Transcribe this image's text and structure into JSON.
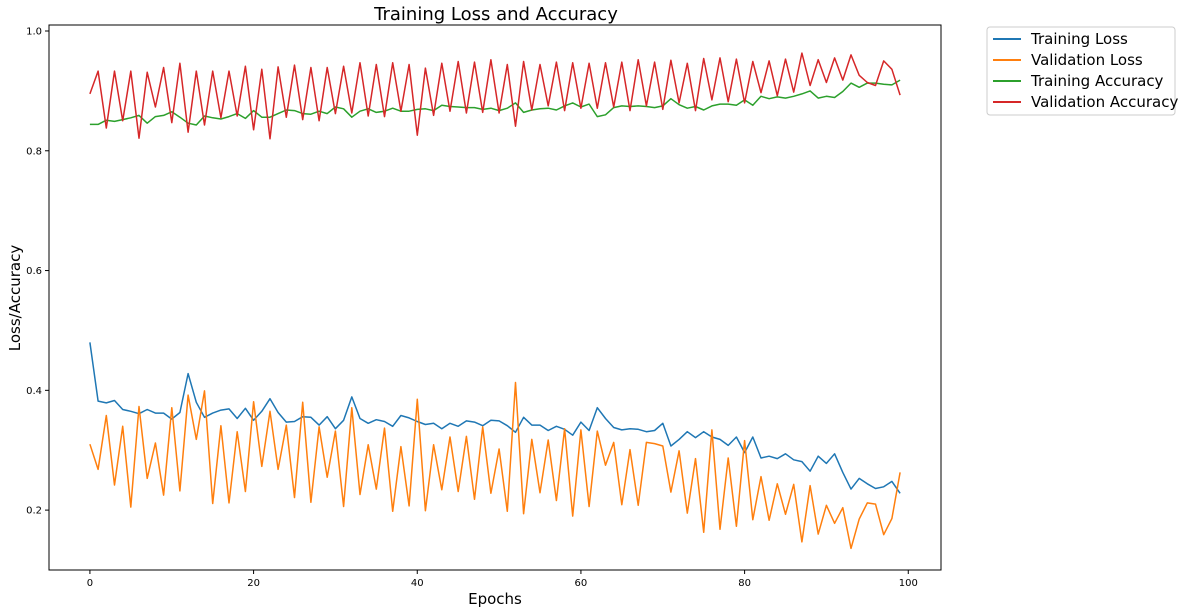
{
  "chart_data": {
    "type": "line",
    "title": "Training Loss and Accuracy",
    "xlabel": "Epochs",
    "ylabel": "Loss/Accuracy",
    "xlim": [
      -5,
      104
    ],
    "ylim": [
      0.1,
      1.01
    ],
    "xticks": [
      "0",
      "20",
      "40",
      "60",
      "80",
      "100"
    ],
    "yticks": [
      "0.2",
      "0.4",
      "0.6",
      "0.8",
      "1.0"
    ],
    "grid": false,
    "legend_position": "outside-top-right",
    "x": [
      0,
      1,
      2,
      3,
      4,
      5,
      6,
      7,
      8,
      9,
      10,
      11,
      12,
      13,
      14,
      15,
      16,
      17,
      18,
      19,
      20,
      21,
      22,
      23,
      24,
      25,
      26,
      27,
      28,
      29,
      30,
      31,
      32,
      33,
      34,
      35,
      36,
      37,
      38,
      39,
      40,
      41,
      42,
      43,
      44,
      45,
      46,
      47,
      48,
      49,
      50,
      51,
      52,
      53,
      54,
      55,
      56,
      57,
      58,
      59,
      60,
      61,
      62,
      63,
      64,
      65,
      66,
      67,
      68,
      69,
      70,
      71,
      72,
      73,
      74,
      75,
      76,
      77,
      78,
      79,
      80,
      81,
      82,
      83,
      84,
      85,
      86,
      87,
      88,
      89,
      90,
      91,
      92,
      93,
      94,
      95,
      96,
      97,
      98,
      99
    ],
    "series": [
      {
        "name": "Training Loss",
        "color": "#1f77b4",
        "values": [
          0.48,
          0.382,
          0.379,
          0.383,
          0.368,
          0.365,
          0.361,
          0.368,
          0.362,
          0.362,
          0.352,
          0.363,
          0.428,
          0.38,
          0.355,
          0.362,
          0.367,
          0.369,
          0.353,
          0.37,
          0.35,
          0.365,
          0.386,
          0.363,
          0.347,
          0.348,
          0.356,
          0.355,
          0.342,
          0.356,
          0.336,
          0.35,
          0.389,
          0.353,
          0.345,
          0.351,
          0.348,
          0.34,
          0.358,
          0.354,
          0.348,
          0.343,
          0.345,
          0.336,
          0.345,
          0.34,
          0.349,
          0.347,
          0.341,
          0.35,
          0.349,
          0.341,
          0.33,
          0.355,
          0.342,
          0.342,
          0.333,
          0.34,
          0.335,
          0.325,
          0.347,
          0.333,
          0.371,
          0.353,
          0.338,
          0.334,
          0.336,
          0.335,
          0.331,
          0.333,
          0.345,
          0.307,
          0.318,
          0.331,
          0.321,
          0.331,
          0.322,
          0.318,
          0.308,
          0.322,
          0.296,
          0.322,
          0.287,
          0.29,
          0.286,
          0.294,
          0.284,
          0.281,
          0.265,
          0.29,
          0.278,
          0.294,
          0.263,
          0.235,
          0.253,
          0.244,
          0.236,
          0.239,
          0.248,
          0.228
        ]
      },
      {
        "name": "Validation Loss",
        "color": "#ff7f0e",
        "values": [
          0.31,
          0.268,
          0.358,
          0.242,
          0.34,
          0.205,
          0.373,
          0.253,
          0.312,
          0.225,
          0.371,
          0.232,
          0.392,
          0.318,
          0.399,
          0.211,
          0.341,
          0.212,
          0.331,
          0.231,
          0.381,
          0.273,
          0.365,
          0.268,
          0.342,
          0.221,
          0.38,
          0.213,
          0.339,
          0.255,
          0.332,
          0.206,
          0.371,
          0.226,
          0.309,
          0.235,
          0.337,
          0.198,
          0.306,
          0.207,
          0.385,
          0.199,
          0.309,
          0.234,
          0.322,
          0.231,
          0.323,
          0.218,
          0.339,
          0.228,
          0.302,
          0.198,
          0.413,
          0.194,
          0.318,
          0.229,
          0.317,
          0.216,
          0.336,
          0.19,
          0.334,
          0.206,
          0.332,
          0.275,
          0.313,
          0.209,
          0.301,
          0.208,
          0.313,
          0.311,
          0.307,
          0.23,
          0.299,
          0.195,
          0.286,
          0.163,
          0.334,
          0.168,
          0.287,
          0.173,
          0.316,
          0.184,
          0.256,
          0.183,
          0.244,
          0.193,
          0.243,
          0.147,
          0.241,
          0.16,
          0.208,
          0.178,
          0.204,
          0.136,
          0.185,
          0.212,
          0.21,
          0.159,
          0.186,
          0.263
        ]
      },
      {
        "name": "Training Accuracy",
        "color": "#2ca02c",
        "values": [
          0.844,
          0.844,
          0.851,
          0.849,
          0.852,
          0.855,
          0.859,
          0.846,
          0.857,
          0.859,
          0.865,
          0.856,
          0.846,
          0.843,
          0.858,
          0.855,
          0.853,
          0.857,
          0.862,
          0.854,
          0.867,
          0.856,
          0.856,
          0.862,
          0.868,
          0.867,
          0.862,
          0.861,
          0.866,
          0.862,
          0.873,
          0.87,
          0.856,
          0.866,
          0.87,
          0.864,
          0.866,
          0.871,
          0.866,
          0.866,
          0.869,
          0.87,
          0.867,
          0.876,
          0.874,
          0.873,
          0.872,
          0.872,
          0.869,
          0.871,
          0.867,
          0.871,
          0.88,
          0.864,
          0.868,
          0.87,
          0.871,
          0.868,
          0.875,
          0.88,
          0.873,
          0.878,
          0.857,
          0.86,
          0.872,
          0.875,
          0.874,
          0.875,
          0.874,
          0.872,
          0.875,
          0.887,
          0.877,
          0.871,
          0.874,
          0.868,
          0.875,
          0.878,
          0.878,
          0.876,
          0.885,
          0.876,
          0.891,
          0.887,
          0.89,
          0.888,
          0.891,
          0.895,
          0.9,
          0.888,
          0.891,
          0.889,
          0.899,
          0.913,
          0.906,
          0.913,
          0.913,
          0.911,
          0.91,
          0.918
        ]
      },
      {
        "name": "Validation Accuracy",
        "color": "#d62728",
        "values": [
          0.895,
          0.933,
          0.838,
          0.933,
          0.85,
          0.933,
          0.821,
          0.931,
          0.873,
          0.939,
          0.847,
          0.946,
          0.831,
          0.933,
          0.843,
          0.933,
          0.855,
          0.933,
          0.858,
          0.941,
          0.835,
          0.936,
          0.82,
          0.94,
          0.856,
          0.943,
          0.852,
          0.939,
          0.85,
          0.939,
          0.862,
          0.941,
          0.863,
          0.947,
          0.858,
          0.944,
          0.857,
          0.947,
          0.866,
          0.944,
          0.826,
          0.938,
          0.859,
          0.946,
          0.866,
          0.949,
          0.863,
          0.948,
          0.864,
          0.952,
          0.863,
          0.944,
          0.841,
          0.949,
          0.868,
          0.944,
          0.875,
          0.948,
          0.867,
          0.947,
          0.871,
          0.946,
          0.871,
          0.947,
          0.873,
          0.948,
          0.867,
          0.952,
          0.875,
          0.948,
          0.869,
          0.951,
          0.88,
          0.946,
          0.867,
          0.954,
          0.885,
          0.955,
          0.882,
          0.953,
          0.88,
          0.949,
          0.897,
          0.95,
          0.892,
          0.953,
          0.898,
          0.963,
          0.909,
          0.952,
          0.914,
          0.955,
          0.918,
          0.96,
          0.926,
          0.914,
          0.909,
          0.95,
          0.936,
          0.893
        ]
      }
    ]
  }
}
